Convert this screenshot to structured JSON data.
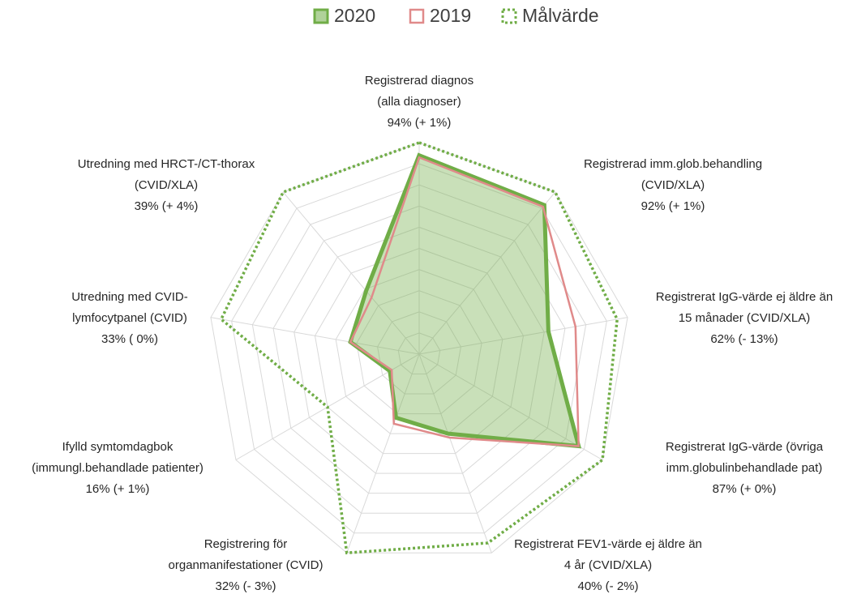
{
  "chart_data": {
    "type": "radar",
    "categories": [
      [
        "Registrerad diagnos",
        "(alla diagnoser)"
      ],
      [
        "Registrerad imm.glob.behandling",
        "(CVID/XLA)"
      ],
      [
        "Registrerat IgG-värde ej äldre än",
        "15 månader (CVID/XLA)"
      ],
      [
        "Registrerat IgG-värde (övriga",
        "imm.globulinbehandlade pat)"
      ],
      [
        "Registrerat FEV1-värde ej äldre än",
        "4 år (CVID/XLA)"
      ],
      [
        "Registrering för",
        "organmanifestationer (CVID)"
      ],
      [
        "Ifylld symtomdagbok",
        "(immungl.behandlade patienter)"
      ],
      [
        "Utredning med CVID-",
        "lymfocytpanel (CVID)"
      ],
      [
        "Utredning med HRCT-/CT-thorax",
        "(CVID/XLA)"
      ]
    ],
    "series": [
      {
        "name": "2020",
        "color": "#70ad47",
        "values": [
          94,
          92,
          62,
          87,
          40,
          32,
          16,
          33,
          39
        ],
        "value_labels": [
          "94% (+ 1%)",
          "92% (+ 1%)",
          "62% (- 13%)",
          "87% (+ 0%)",
          "40% (- 2%)",
          "32% (- 3%)",
          "16% (+ 1%)",
          "33% ( 0%)",
          "39% (+ 4%)"
        ]
      },
      {
        "name": "2019",
        "color": "#e08a8a",
        "values": [
          93,
          91,
          75,
          87,
          42,
          35,
          15,
          33,
          35
        ]
      },
      {
        "name": "Målvärde",
        "color": "#70ad47",
        "values": [
          100,
          100,
          95,
          100,
          95,
          100,
          50,
          95,
          100
        ]
      }
    ],
    "rlim": [
      0,
      100
    ],
    "rticks": [
      10,
      20,
      30,
      40,
      50,
      60,
      70,
      80,
      90,
      100
    ],
    "grid": true,
    "legend": "top"
  }
}
